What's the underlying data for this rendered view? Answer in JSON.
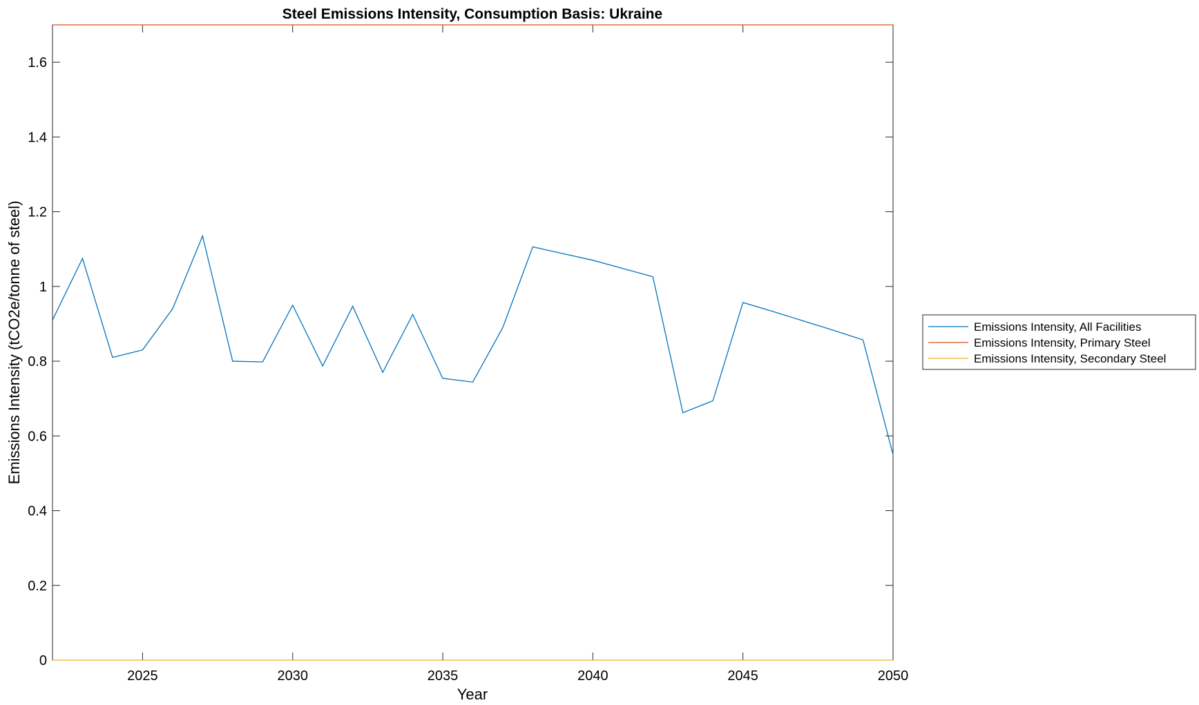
{
  "chart_data": {
    "type": "line",
    "title": "Steel Emissions Intensity, Consumption Basis: Ukraine",
    "xlabel": "Year",
    "ylabel": "Emissions Intensity (tCO2e/tonne of steel)",
    "xlim": [
      2022,
      2050
    ],
    "ylim": [
      0,
      1.7
    ],
    "xticks": [
      2025,
      2030,
      2035,
      2040,
      2045,
      2050
    ],
    "yticks": [
      0,
      0.2,
      0.4,
      0.6,
      0.8,
      1,
      1.2,
      1.4,
      1.6
    ],
    "xtick_labels": [
      "2025",
      "2030",
      "2035",
      "2040",
      "2045",
      "2050"
    ],
    "ytick_labels": [
      "0",
      "0.2",
      "0.4",
      "0.6",
      "0.8",
      "1",
      "1.2",
      "1.4",
      "1.6"
    ],
    "grid": false,
    "legend_position": "outside-right",
    "x": [
      2022,
      2023,
      2024,
      2025,
      2026,
      2027,
      2028,
      2029,
      2030,
      2031,
      2032,
      2033,
      2034,
      2035,
      2036,
      2037,
      2038,
      2039,
      2040,
      2041,
      2042,
      2043,
      2044,
      2045,
      2046,
      2047,
      2048,
      2049,
      2050
    ],
    "series": [
      {
        "name": "Emissions Intensity, All Facilities",
        "color": "#0072BD",
        "values": [
          0.91,
          1.075,
          0.81,
          0.83,
          0.94,
          1.135,
          0.8,
          0.798,
          0.95,
          0.787,
          0.947,
          0.77,
          0.925,
          0.754,
          0.744,
          0.89,
          1.106,
          1.088,
          1.07,
          1.048,
          1.026,
          0.662,
          0.694,
          0.957,
          0.933,
          0.908,
          0.883,
          0.857,
          0.55
        ]
      },
      {
        "name": "Emissions Intensity, Primary Steel",
        "color": "#D95319",
        "values": [
          1.7,
          1.7,
          1.7,
          1.7,
          1.7,
          1.7,
          1.7,
          1.7,
          1.7,
          1.7,
          1.7,
          1.7,
          1.7,
          1.7,
          1.7,
          1.7,
          1.7,
          1.7,
          1.7,
          1.7,
          1.7,
          1.7,
          1.7,
          1.7,
          1.7,
          1.7,
          1.7,
          1.7,
          1.7
        ]
      },
      {
        "name": "Emissions Intensity, Secondary Steel",
        "color": "#EDB120",
        "values": [
          0,
          0,
          0,
          0,
          0,
          0,
          0,
          0,
          0,
          0,
          0,
          0,
          0,
          0,
          0,
          0,
          0,
          0,
          0,
          0,
          0,
          0,
          0,
          0,
          0,
          0,
          0,
          0,
          0
        ]
      }
    ]
  }
}
